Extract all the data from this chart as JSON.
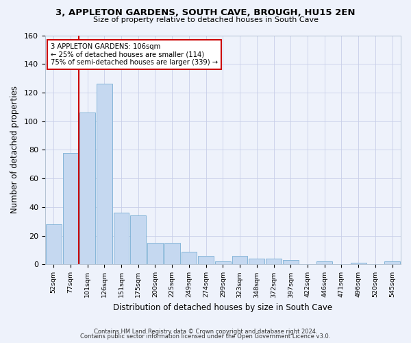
{
  "title": "3, APPLETON GARDENS, SOUTH CAVE, BROUGH, HU15 2EN",
  "subtitle": "Size of property relative to detached houses in South Cave",
  "xlabel": "Distribution of detached houses by size in South Cave",
  "ylabel": "Number of detached properties",
  "bin_labels": [
    "52sqm",
    "77sqm",
    "101sqm",
    "126sqm",
    "151sqm",
    "175sqm",
    "200sqm",
    "225sqm",
    "249sqm",
    "274sqm",
    "299sqm",
    "323sqm",
    "348sqm",
    "372sqm",
    "397sqm",
    "422sqm",
    "446sqm",
    "471sqm",
    "496sqm",
    "520sqm",
    "545sqm"
  ],
  "bar_heights": [
    28,
    78,
    106,
    126,
    36,
    34,
    15,
    15,
    9,
    6,
    2,
    6,
    4,
    4,
    3,
    0,
    2,
    0,
    1,
    0,
    2
  ],
  "bar_color": "#c5d8f0",
  "bar_edge_color": "#7aafd4",
  "annotation_text": "3 APPLETON GARDENS: 106sqm\n← 25% of detached houses are smaller (114)\n75% of semi-detached houses are larger (339) →",
  "vline_x_data": 1.5,
  "annotation_box_color": "#ffffff",
  "annotation_box_edge": "#cc0000",
  "vline_color": "#cc0000",
  "ylim": [
    0,
    160
  ],
  "yticks": [
    0,
    20,
    40,
    60,
    80,
    100,
    120,
    140,
    160
  ],
  "footer1": "Contains HM Land Registry data © Crown copyright and database right 2024.",
  "footer2": "Contains public sector information licensed under the Open Government Licence v3.0.",
  "bg_color": "#eef2fb",
  "grid_color": "#c8cfe8"
}
